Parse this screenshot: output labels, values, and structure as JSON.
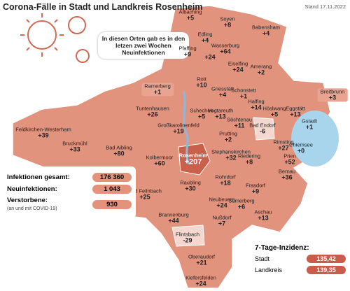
{
  "header": {
    "title": "Corona-Fälle in Stadt und Landkreis Rosenheim",
    "date": "Stand 17.11.2022"
  },
  "callout": "In diesen Orten gab es in den letzen zwei Wochen Neuinfektionen",
  "places": [
    {
      "name": "Albaching",
      "value": "+5"
    },
    {
      "name": "Soyen",
      "value": "+8"
    },
    {
      "name": "Babensham",
      "value": "+4"
    },
    {
      "name": "Edling",
      "value": "+4"
    },
    {
      "name": "Pfaffing",
      "value": "+9"
    },
    {
      "value": "+24"
    },
    {
      "name": "Wasserburg",
      "value": "+64"
    },
    {
      "name": "Eiselfing",
      "value": "+24"
    },
    {
      "name": "Amerang",
      "value": "+2"
    },
    {
      "name": "Ramerberg",
      "value": "+1"
    },
    {
      "name": "Rott",
      "value": "+10"
    },
    {
      "name": "Griesstätt",
      "value": "+4"
    },
    {
      "name": "Schonstett",
      "value": "+1"
    },
    {
      "name": "Breitbrunn",
      "value": "+3"
    },
    {
      "name": "Halfing",
      "value": "+14"
    },
    {
      "name": "Höslwang",
      "value": "+5"
    },
    {
      "name": "Eggstätt",
      "value": "+13"
    },
    {
      "name": "Gstadt",
      "value": "+1"
    },
    {
      "name": "Tuntenhausen",
      "value": "+26"
    },
    {
      "name": "Schechen",
      "value": "+5"
    },
    {
      "name": "Vogtareuth",
      "value": "+13"
    },
    {
      "name": "Söchtenau",
      "value": "+11"
    },
    {
      "name": "Bad Endorf",
      "value": "-6"
    },
    {
      "name": "Chiemsee",
      "value": "+0"
    },
    {
      "name": "Feldkirchen-Westerham",
      "value": "+39"
    },
    {
      "name": "Großkarolinenfeld",
      "value": "+19"
    },
    {
      "name": "Bruckmühl",
      "value": "+33"
    },
    {
      "name": "Bad Aibling",
      "value": "+80"
    },
    {
      "name": "Prutting",
      "value": "+2"
    },
    {
      "name": "Rimsting",
      "value": "+27"
    },
    {
      "name": "Kolbermoor",
      "value": "+60"
    },
    {
      "name": "Rosenheim",
      "value": "+207"
    },
    {
      "name": "Stephanskirchen",
      "value": "+32"
    },
    {
      "name": "Riedering",
      "value": "+8"
    },
    {
      "name": "Prien",
      "value": "+52"
    },
    {
      "name": "Bernau",
      "value": "+36"
    },
    {
      "name": "Raubling",
      "value": "+30"
    },
    {
      "name": "Rohrdorf",
      "value": "+18"
    },
    {
      "name": "Neubeuern",
      "value": "+24"
    },
    {
      "name": "Frasdorf",
      "value": "+9"
    },
    {
      "name": "Bad Feilnbach",
      "value": "+25"
    },
    {
      "name": "Samerberg",
      "value": "+6"
    },
    {
      "name": "Aschau",
      "value": "+13"
    },
    {
      "name": "Brannenburg",
      "value": "+44"
    },
    {
      "name": "Nußdorf",
      "value": "+7"
    },
    {
      "name": "Flintsbach",
      "value": "-29"
    },
    {
      "name": "Oberaudorf",
      "value": "+21"
    },
    {
      "name": "Kiefersfelden",
      "value": "+24"
    }
  ],
  "stats": [
    {
      "label": "Infektionen gesamt:",
      "value": "176 360"
    },
    {
      "label": "Neuinfektionen:",
      "value": "1 043"
    },
    {
      "label": "Verstorbene:",
      "note": "(an und mit COVID-19)",
      "value": "930"
    }
  ],
  "incidence": {
    "title": "7-Tage-Inzidenz:",
    "rows": [
      {
        "label": "Stadt",
        "value": "135,42"
      },
      {
        "label": "Landkreis",
        "value": "139,35"
      }
    ]
  }
}
